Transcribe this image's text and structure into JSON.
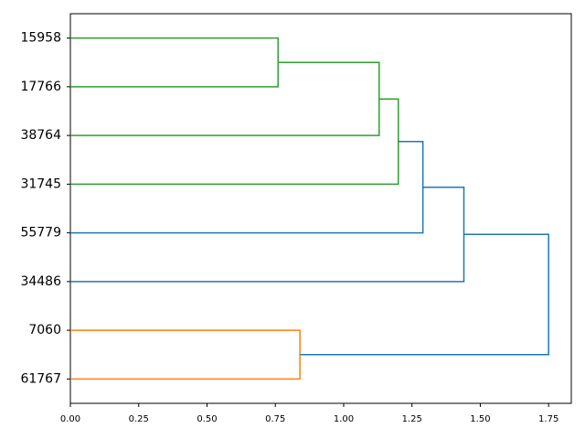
{
  "chart_data": {
    "type": "dendrogram",
    "leaves": [
      "15958",
      "17766",
      "38764",
      "31745",
      "55779",
      "34486",
      "7060",
      "61767"
    ],
    "links": [
      {
        "children": [
          0,
          1
        ],
        "distance": 0.76,
        "color": "#2ca02c"
      },
      {
        "children": [
          8,
          2
        ],
        "distance": 1.13,
        "color": "#2ca02c"
      },
      {
        "children": [
          9,
          3
        ],
        "distance": 1.2,
        "color": "#2ca02c"
      },
      {
        "children": [
          10,
          4
        ],
        "distance": 1.29,
        "color": "#1f77b4"
      },
      {
        "children": [
          11,
          5
        ],
        "distance": 1.44,
        "color": "#1f77b4"
      },
      {
        "children": [
          6,
          7
        ],
        "distance": 0.84,
        "color": "#ff7f0e"
      },
      {
        "children": [
          12,
          13
        ],
        "distance": 1.75,
        "color": "#1f77b4"
      }
    ],
    "xlim": [
      0,
      1.833
    ],
    "xticks": [
      {
        "value": 0,
        "label": "0.00"
      },
      {
        "value": 0.25,
        "label": "0.25"
      },
      {
        "value": 0.5,
        "label": "0.50"
      },
      {
        "value": 0.75,
        "label": "0.75"
      },
      {
        "value": 1,
        "label": "1.00"
      },
      {
        "value": 1.25,
        "label": "1.25"
      },
      {
        "value": 1.5,
        "label": "1.50"
      },
      {
        "value": 1.75,
        "label": "1.75"
      }
    ]
  }
}
